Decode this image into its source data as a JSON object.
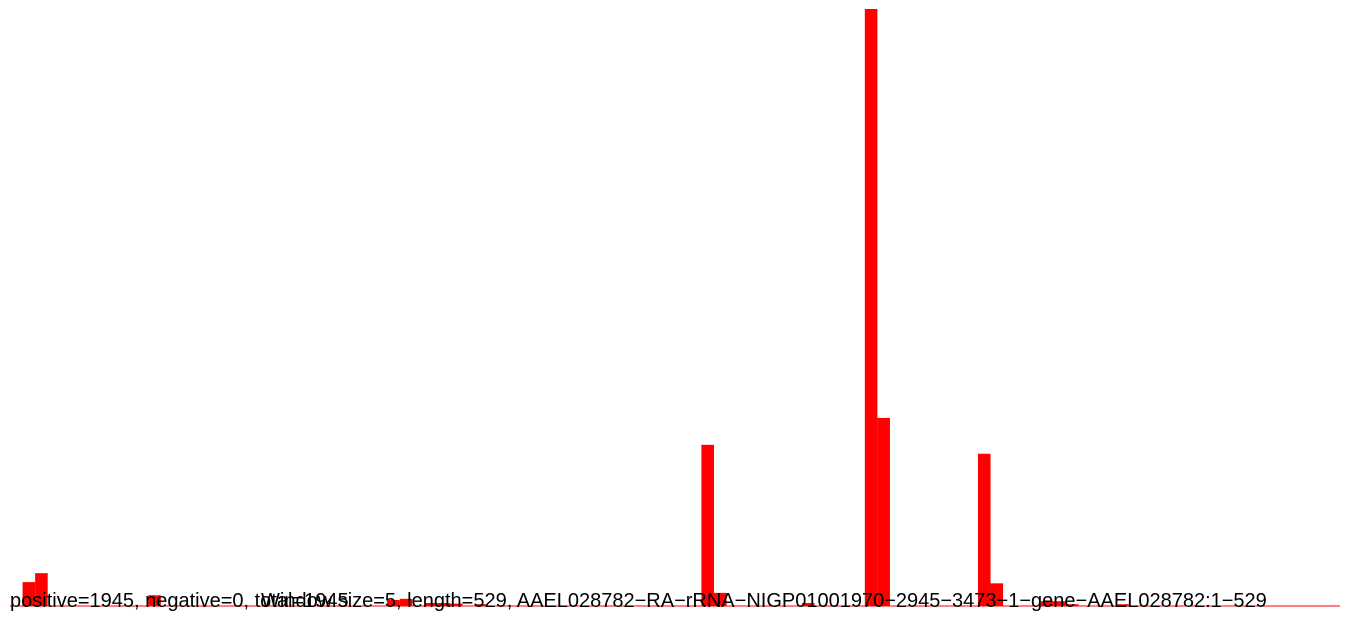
{
  "chart_data": {
    "type": "bar",
    "window_size": 5,
    "sequence_length": 529,
    "positive_color": "#ff0000",
    "negative_color": "#00008b",
    "baseline_color": "#ff0000",
    "ylim": [
      0,
      1
    ],
    "bins": [
      {
        "start": 5,
        "value": 0.04
      },
      {
        "start": 10,
        "value": 0.055
      },
      {
        "start": 55,
        "value": 0.018
      },
      {
        "start": 150,
        "value": 0.01
      },
      {
        "start": 155,
        "value": 0.012
      },
      {
        "start": 165,
        "value": 0.005
      },
      {
        "start": 170,
        "value": 0.005
      },
      {
        "start": 175,
        "value": 0.004
      },
      {
        "start": 185,
        "value": 0.003
      },
      {
        "start": 275,
        "value": 0.27
      },
      {
        "start": 280,
        "value": 0.022
      },
      {
        "start": 315,
        "value": 0.005
      },
      {
        "start": 340,
        "value": 1.0
      },
      {
        "start": 345,
        "value": 0.315
      },
      {
        "start": 385,
        "value": 0.255
      },
      {
        "start": 390,
        "value": 0.038
      },
      {
        "start": 410,
        "value": 0.008
      },
      {
        "start": 415,
        "value": 0.008
      },
      {
        "start": 420,
        "value": 0.003
      },
      {
        "start": 440,
        "value": 0.003
      }
    ]
  },
  "caption": {
    "positive": "positive=1945, negative=0, total=1945",
    "window": "Window size=5, length=529, AAEL028782−RA−rRNA−NIGP01001970−2945−3473−1−gene−AAEL028782:1−529"
  }
}
